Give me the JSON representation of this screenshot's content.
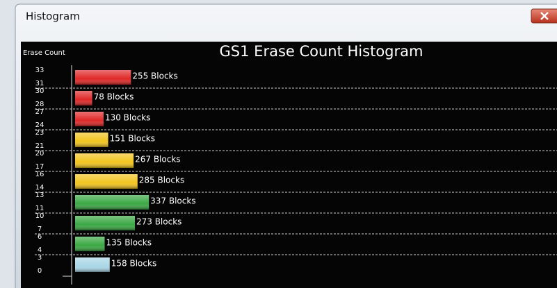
{
  "window": {
    "title": "Histogram"
  },
  "chart_data": {
    "type": "bar",
    "orientation": "horizontal",
    "title": "GS1 Erase Count Histogram",
    "y_label": "Erase Count",
    "categories": [
      [
        "33",
        "31"
      ],
      [
        "30",
        "28"
      ],
      [
        "27",
        "24"
      ],
      [
        "23",
        "21"
      ],
      [
        "20",
        "17"
      ],
      [
        "16",
        "14"
      ],
      [
        "13",
        "11"
      ],
      [
        "10",
        "7"
      ],
      [
        "6",
        "4"
      ],
      [
        "3",
        "0"
      ]
    ],
    "values": [
      255,
      78,
      130,
      151,
      267,
      285,
      337,
      273,
      135,
      158
    ],
    "value_labels": [
      "255 Blocks",
      "78 Blocks",
      "130 Blocks",
      "151 Blocks",
      "267 Blocks",
      "285 Blocks",
      "337 Blocks",
      "273 Blocks",
      "135 Blocks",
      "158 Blocks"
    ],
    "colors": [
      "#e02828",
      "#e02828",
      "#e02828",
      "#f2c41e",
      "#f2c41e",
      "#f2c41e",
      "#3aa843",
      "#3aa843",
      "#3aa843",
      "#a9d7e6"
    ],
    "xlim": [
      0,
      2200
    ],
    "grid": true
  }
}
